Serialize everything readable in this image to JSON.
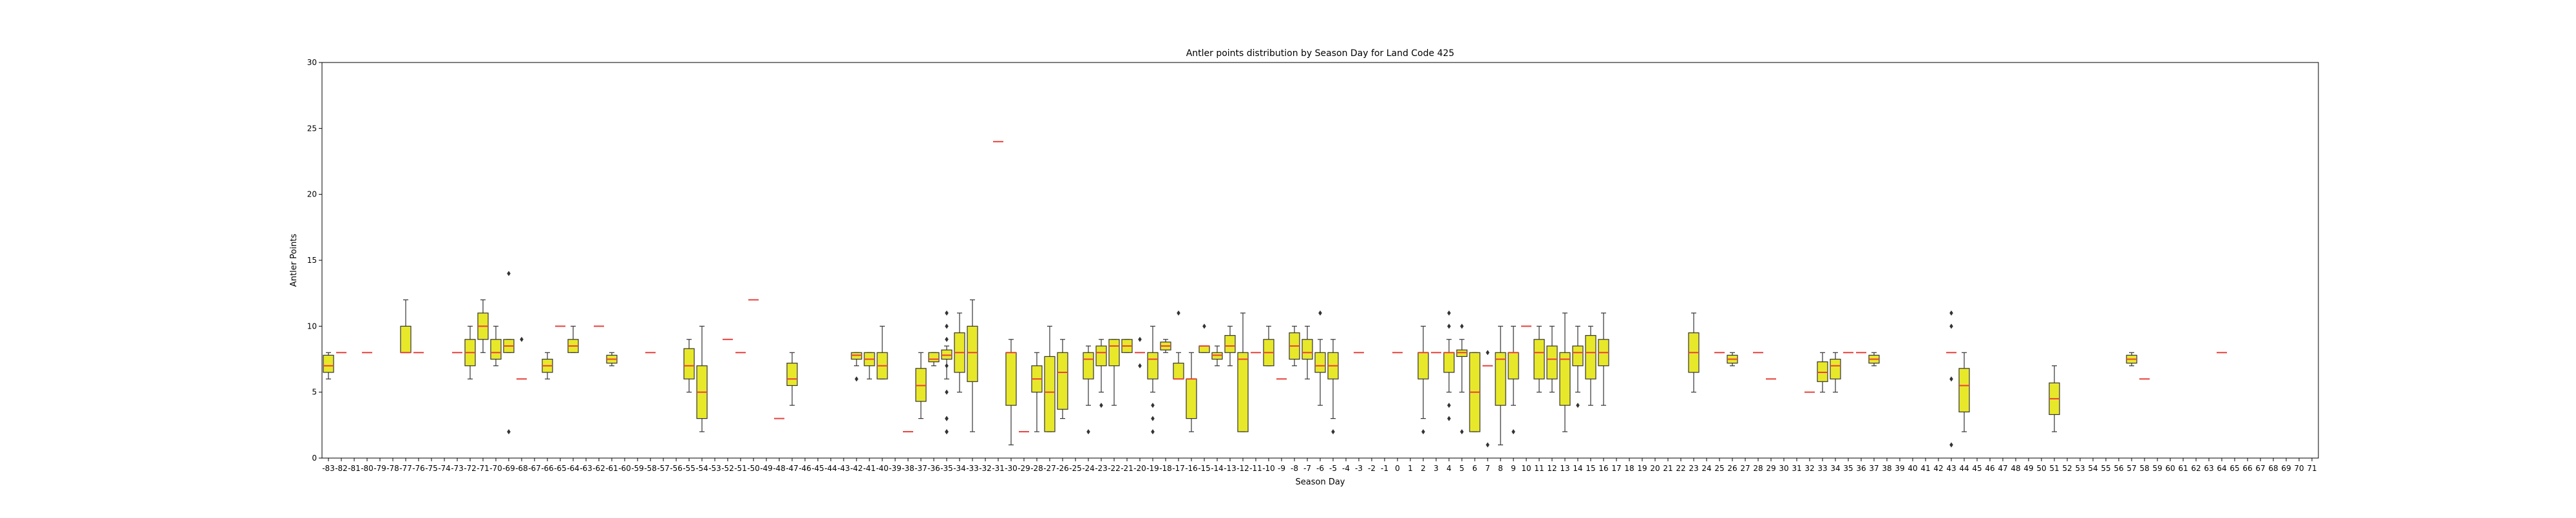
{
  "chart_data": {
    "type": "box",
    "title": "Antler points distribution by Season Day for Land Code 425",
    "xlabel": "Season Day",
    "ylabel": "Antler Points",
    "ylim": [
      0,
      30
    ],
    "yticks": [
      0,
      5,
      10,
      15,
      20,
      25,
      30
    ],
    "categories": [
      "-83",
      "-82",
      "-81",
      "-80",
      "-79",
      "-78",
      "-77",
      "-76",
      "-75",
      "-74",
      "-73",
      "-72",
      "-71",
      "-70",
      "-69",
      "-68",
      "-67",
      "-66",
      "-65",
      "-64",
      "-63",
      "-62",
      "-61",
      "-60",
      "-59",
      "-58",
      "-57",
      "-56",
      "-55",
      "-54",
      "-53",
      "-52",
      "-51",
      "-50",
      "-49",
      "-48",
      "-47",
      "-46",
      "-45",
      "-44",
      "-43",
      "-42",
      "-41",
      "-40",
      "-39",
      "-38",
      "-37",
      "-36",
      "-35",
      "-34",
      "-33",
      "-32",
      "-31",
      "-30",
      "-29",
      "-28",
      "-27",
      "-26",
      "-25",
      "-24",
      "-23",
      "-22",
      "-21",
      "-20",
      "-19",
      "-18",
      "-17",
      "-16",
      "-15",
      "-14",
      "-13",
      "-12",
      "-11",
      "-10",
      "-9",
      "-8",
      "-7",
      "-6",
      "-5",
      "-4",
      "-3",
      "-2",
      "-1",
      "0",
      "1",
      "2",
      "3",
      "4",
      "5",
      "6",
      "7",
      "8",
      "9",
      "10",
      "11",
      "12",
      "13",
      "14",
      "15",
      "16",
      "17",
      "18",
      "19",
      "20",
      "21",
      "22",
      "23",
      "24",
      "25",
      "26",
      "27",
      "28",
      "29",
      "30",
      "31",
      "32",
      "33",
      "34",
      "35",
      "36",
      "37",
      "38",
      "39",
      "40",
      "41",
      "42",
      "43",
      "44",
      "45",
      "46",
      "47",
      "48",
      "49",
      "50",
      "51",
      "52",
      "53",
      "54",
      "55",
      "56",
      "57",
      "58",
      "59",
      "60",
      "61",
      "62",
      "63",
      "64",
      "65",
      "66",
      "67",
      "68",
      "69",
      "70",
      "71"
    ],
    "box_color": "#e8e82a",
    "median_color": "#e8413c",
    "boxes": [
      {
        "x": "-83",
        "min": 6,
        "q1": 6.5,
        "median": 7,
        "q3": 7.8,
        "max": 8,
        "outliers": []
      },
      {
        "x": "-82",
        "median": 8
      },
      {
        "x": "-80",
        "median": 8
      },
      {
        "x": "-77",
        "min": 8,
        "q1": 8,
        "median": 8,
        "q3": 10,
        "max": 12,
        "outliers": []
      },
      {
        "x": "-76",
        "median": 8
      },
      {
        "x": "-73",
        "median": 8
      },
      {
        "x": "-72",
        "min": 6,
        "q1": 7,
        "median": 8,
        "q3": 9,
        "max": 10,
        "outliers": []
      },
      {
        "x": "-71",
        "min": 8,
        "q1": 9,
        "median": 10,
        "q3": 11,
        "max": 12,
        "outliers": []
      },
      {
        "x": "-70",
        "min": 7,
        "q1": 7.5,
        "median": 8,
        "q3": 9,
        "max": 10,
        "outliers": []
      },
      {
        "x": "-69",
        "min": 8,
        "q1": 8,
        "median": 8.5,
        "q3": 9,
        "max": 9,
        "outliers": [
          14,
          2
        ]
      },
      {
        "x": "-68",
        "median": 6,
        "outliers": [
          9
        ]
      },
      {
        "x": "-66",
        "min": 6,
        "q1": 6.5,
        "median": 7,
        "q3": 7.5,
        "max": 8,
        "outliers": []
      },
      {
        "x": "-65",
        "median": 10
      },
      {
        "x": "-64",
        "min": 8,
        "q1": 8,
        "median": 8.5,
        "q3": 9,
        "max": 10,
        "outliers": []
      },
      {
        "x": "-62",
        "median": 10
      },
      {
        "x": "-61",
        "min": 7,
        "q1": 7.2,
        "median": 7.5,
        "q3": 7.8,
        "max": 8,
        "outliers": []
      },
      {
        "x": "-58",
        "median": 8
      },
      {
        "x": "-55",
        "min": 5,
        "q1": 6,
        "median": 7,
        "q3": 8.3,
        "max": 9,
        "outliers": []
      },
      {
        "x": "-54",
        "min": 2,
        "q1": 3,
        "median": 5,
        "q3": 7,
        "max": 10,
        "outliers": []
      },
      {
        "x": "-52",
        "median": 9
      },
      {
        "x": "-51",
        "median": 8
      },
      {
        "x": "-50",
        "median": 12
      },
      {
        "x": "-48",
        "median": 3
      },
      {
        "x": "-47",
        "min": 4,
        "q1": 5.5,
        "median": 6,
        "q3": 7.2,
        "max": 8,
        "outliers": []
      },
      {
        "x": "-42",
        "min": 7,
        "q1": 7.5,
        "median": 7.8,
        "q3": 8,
        "max": 8,
        "outliers": [
          6
        ]
      },
      {
        "x": "-41",
        "min": 6,
        "q1": 7,
        "median": 7.5,
        "q3": 8,
        "max": 8,
        "outliers": []
      },
      {
        "x": "-40",
        "min": 6,
        "q1": 6,
        "median": 7,
        "q3": 8,
        "max": 10,
        "outliers": []
      },
      {
        "x": "-38",
        "median": 2
      },
      {
        "x": "-37",
        "min": 3,
        "q1": 4.3,
        "median": 5.5,
        "q3": 6.8,
        "max": 8,
        "outliers": []
      },
      {
        "x": "-36",
        "min": 7,
        "q1": 7.3,
        "median": 7.5,
        "q3": 8,
        "max": 8,
        "outliers": []
      },
      {
        "x": "-35",
        "min": 6,
        "q1": 7.5,
        "median": 7.8,
        "q3": 8.2,
        "max": 8.5,
        "outliers": [
          11,
          10,
          9,
          7,
          5,
          3,
          3,
          2,
          2
        ]
      },
      {
        "x": "-34",
        "min": 5,
        "q1": 6.5,
        "median": 8,
        "q3": 9.5,
        "max": 11,
        "outliers": []
      },
      {
        "x": "-33",
        "min": 2,
        "q1": 5.8,
        "median": 8,
        "q3": 10,
        "max": 12,
        "outliers": []
      },
      {
        "x": "-31",
        "median": 24
      },
      {
        "x": "-30",
        "min": 1,
        "q1": 4,
        "median": 8,
        "q3": 8,
        "max": 9,
        "outliers": []
      },
      {
        "x": "-29",
        "median": 2
      },
      {
        "x": "-28",
        "min": 2,
        "q1": 5,
        "median": 6,
        "q3": 7,
        "max": 8,
        "outliers": []
      },
      {
        "x": "-27",
        "min": 2,
        "q1": 2,
        "median": 5,
        "q3": 7.7,
        "max": 10,
        "outliers": []
      },
      {
        "x": "-26",
        "min": 3,
        "q1": 3.7,
        "median": 6.5,
        "q3": 8,
        "max": 9,
        "outliers": []
      },
      {
        "x": "-24",
        "min": 4,
        "q1": 6,
        "median": 7.5,
        "q3": 8,
        "max": 8.5,
        "outliers": [
          2
        ]
      },
      {
        "x": "-23",
        "min": 5,
        "q1": 7,
        "median": 8,
        "q3": 8.5,
        "max": 9,
        "outliers": [
          4
        ]
      },
      {
        "x": "-22",
        "min": 4,
        "q1": 7,
        "median": 8.5,
        "q3": 9,
        "max": 9,
        "outliers": []
      },
      {
        "x": "-21",
        "min": 8,
        "q1": 8,
        "median": 8.5,
        "q3": 9,
        "max": 9,
        "outliers": []
      },
      {
        "x": "-20",
        "median": 8,
        "outliers": [
          9,
          7
        ]
      },
      {
        "x": "-19",
        "min": 5,
        "q1": 6,
        "median": 7.5,
        "q3": 8,
        "max": 10,
        "outliers": [
          4,
          3,
          2
        ]
      },
      {
        "x": "-18",
        "min": 8,
        "q1": 8.2,
        "median": 8.5,
        "q3": 8.8,
        "max": 9,
        "outliers": []
      },
      {
        "x": "-17",
        "median": 6,
        "q1": 6,
        "q3": 7.2,
        "min": 6,
        "max": 8,
        "outliers": [
          11
        ]
      },
      {
        "x": "-16",
        "min": 2,
        "q1": 3,
        "median": 6,
        "q3": 6,
        "max": 8,
        "outliers": []
      },
      {
        "x": "-15",
        "min": 8,
        "q1": 8,
        "median": 8.5,
        "q3": 8.5,
        "max": 8.5,
        "outliers": [
          10
        ]
      },
      {
        "x": "-14",
        "min": 7,
        "q1": 7.5,
        "median": 7.8,
        "q3": 8,
        "max": 8.5,
        "outliers": []
      },
      {
        "x": "-13",
        "min": 7,
        "q1": 8,
        "median": 8.5,
        "q3": 9.3,
        "max": 10,
        "outliers": []
      },
      {
        "x": "-12",
        "min": 2,
        "q1": 2,
        "median": 7.5,
        "q3": 8,
        "max": 11,
        "outliers": []
      },
      {
        "x": "-11",
        "median": 8
      },
      {
        "x": "-10",
        "min": 7,
        "q1": 7,
        "median": 8,
        "q3": 9,
        "max": 10,
        "outliers": []
      },
      {
        "x": "-9",
        "median": 6
      },
      {
        "x": "-8",
        "min": 7,
        "q1": 7.5,
        "median": 8.5,
        "q3": 9.5,
        "max": 10,
        "outliers": []
      },
      {
        "x": "-7",
        "min": 6,
        "q1": 7.5,
        "median": 8,
        "q3": 9,
        "max": 10,
        "outliers": []
      },
      {
        "x": "-6",
        "min": 4,
        "q1": 6.5,
        "median": 7,
        "q3": 8,
        "max": 9,
        "outliers": [
          11
        ]
      },
      {
        "x": "-5",
        "min": 3,
        "q1": 6,
        "median": 7,
        "q3": 8,
        "max": 9,
        "outliers": [
          2
        ]
      },
      {
        "x": "-3",
        "median": 8
      },
      {
        "x": "0",
        "median": 8
      },
      {
        "x": "2",
        "min": 3,
        "q1": 6,
        "median": 8,
        "q3": 8,
        "max": 10,
        "outliers": [
          2
        ]
      },
      {
        "x": "3",
        "median": 8
      },
      {
        "x": "4",
        "min": 5,
        "q1": 6.5,
        "median": 8,
        "q3": 8,
        "max": 9,
        "outliers": [
          11,
          10,
          4,
          3
        ]
      },
      {
        "x": "5",
        "min": 5,
        "q1": 7.7,
        "median": 8,
        "q3": 8.2,
        "max": 9,
        "outliers": [
          10,
          2
        ]
      },
      {
        "x": "6",
        "min": 2,
        "q1": 2,
        "median": 5,
        "q3": 8,
        "max": 8,
        "outliers": []
      },
      {
        "x": "7",
        "median": 7,
        "outliers": [
          8,
          1
        ]
      },
      {
        "x": "8",
        "min": 1,
        "q1": 4,
        "median": 7.5,
        "q3": 8,
        "max": 10,
        "outliers": []
      },
      {
        "x": "9",
        "min": 4,
        "q1": 6,
        "median": 8,
        "q3": 8,
        "max": 10,
        "outliers": [
          2
        ]
      },
      {
        "x": "10",
        "median": 10
      },
      {
        "x": "11",
        "min": 5,
        "q1": 6,
        "median": 8,
        "q3": 9,
        "max": 10,
        "outliers": []
      },
      {
        "x": "12",
        "min": 5,
        "q1": 6,
        "median": 7.5,
        "q3": 8.5,
        "max": 10,
        "outliers": []
      },
      {
        "x": "13",
        "min": 2,
        "q1": 4,
        "median": 7.5,
        "q3": 8,
        "max": 11,
        "outliers": []
      },
      {
        "x": "14",
        "min": 5,
        "q1": 7,
        "median": 8,
        "q3": 8.5,
        "max": 10,
        "outliers": [
          4
        ]
      },
      {
        "x": "15",
        "min": 4,
        "q1": 6,
        "median": 8,
        "q3": 9.3,
        "max": 10,
        "outliers": []
      },
      {
        "x": "16",
        "min": 4,
        "q1": 7,
        "median": 8,
        "q3": 9,
        "max": 11,
        "outliers": []
      },
      {
        "x": "23",
        "min": 5,
        "q1": 6.5,
        "median": 8,
        "q3": 9.5,
        "max": 11,
        "outliers": []
      },
      {
        "x": "25",
        "median": 8
      },
      {
        "x": "26",
        "min": 7,
        "q1": 7.2,
        "median": 7.5,
        "q3": 7.8,
        "max": 8,
        "outliers": []
      },
      {
        "x": "28",
        "median": 8
      },
      {
        "x": "29",
        "median": 6
      },
      {
        "x": "32",
        "median": 5
      },
      {
        "x": "33",
        "min": 5,
        "q1": 5.8,
        "median": 6.5,
        "q3": 7.3,
        "max": 8,
        "outliers": []
      },
      {
        "x": "34",
        "min": 5,
        "q1": 6,
        "median": 7,
        "q3": 7.5,
        "max": 8,
        "outliers": []
      },
      {
        "x": "35",
        "median": 8
      },
      {
        "x": "36",
        "median": 8
      },
      {
        "x": "37",
        "min": 7,
        "q1": 7.2,
        "median": 7.5,
        "q3": 7.8,
        "max": 8,
        "outliers": []
      },
      {
        "x": "43",
        "median": 8,
        "outliers": [
          11,
          10,
          6,
          1
        ]
      },
      {
        "x": "44",
        "min": 2,
        "q1": 3.5,
        "median": 5.5,
        "q3": 6.8,
        "max": 8,
        "outliers": []
      },
      {
        "x": "51",
        "min": 2,
        "q1": 3.3,
        "median": 4.5,
        "q3": 5.7,
        "max": 7,
        "outliers": []
      },
      {
        "x": "57",
        "min": 7,
        "q1": 7.2,
        "median": 7.5,
        "q3": 7.8,
        "max": 8,
        "outliers": []
      },
      {
        "x": "58",
        "median": 6
      },
      {
        "x": "64",
        "median": 8
      }
    ]
  }
}
